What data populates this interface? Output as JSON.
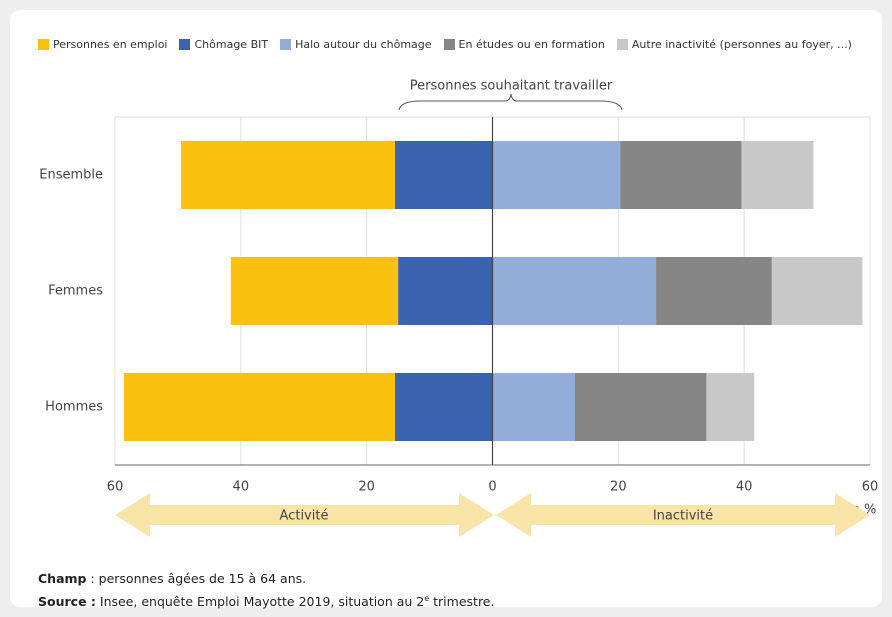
{
  "chart_data": {
    "type": "diverging_stacked_bar",
    "categories": [
      "Ensemble",
      "Femmes",
      "Hommes"
    ],
    "series": [
      {
        "name": "Personnes en emploi",
        "color": "#fcc10f",
        "values": [
          -34.0,
          -26.6,
          -43.1
        ]
      },
      {
        "name": "Chômage BIT",
        "color": "#3a62ae",
        "values": [
          -15.5,
          -15.0,
          -15.5
        ]
      },
      {
        "name": "Halo autour du chômage",
        "color": "#93acd9",
        "values": [
          20.3,
          26.0,
          13.1
        ]
      },
      {
        "name": "En études ou en formation",
        "color": "#868686",
        "values": [
          19.3,
          18.4,
          20.9
        ]
      },
      {
        "name": "Autre inactivité (personnes au foyer, ...)",
        "color": "#c8c8c8",
        "values": [
          11.4,
          14.4,
          7.6
        ]
      }
    ],
    "xlim": [
      -60,
      60
    ],
    "xticks": [
      {
        "value": -60,
        "label": "60"
      },
      {
        "value": -40,
        "label": "40"
      },
      {
        "value": -20,
        "label": "20"
      },
      0,
      20,
      40,
      60
    ],
    "x_unit": "en %",
    "grid": true,
    "bracket_label": "Personnes souhaitant travailler",
    "arrows": [
      "Activité",
      "Inactivité"
    ]
  },
  "notes": {
    "champ_label": "Champ",
    "champ_text": " : personnes âgées de 15 à 64 ans.",
    "source_label": "Source :",
    "source_text": " Insee, enquête Emploi Mayotte 2019, situation au 2",
    "source_sup": "e",
    "source_end": " trimestre."
  }
}
